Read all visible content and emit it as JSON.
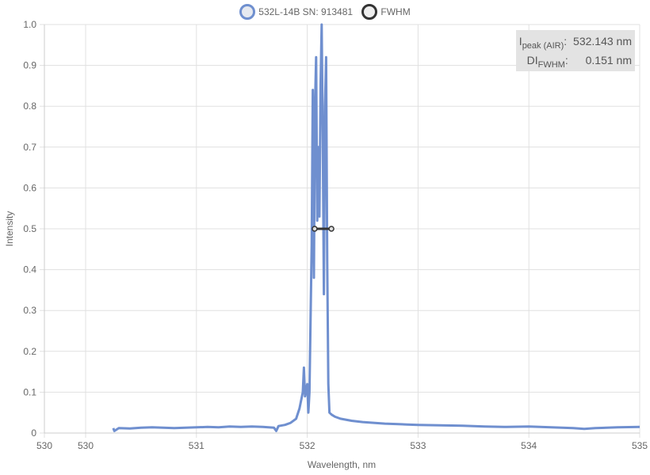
{
  "legend": {
    "series_label": "532L-14B SN: 913481",
    "fwhm_label": "FWHM"
  },
  "info": {
    "peak_main": "I",
    "peak_sub": "peak (AIR)",
    "peak_colon": ":",
    "peak_value": "532.143 nm",
    "fwhm_main": "DI",
    "fwhm_sub": "FWHM",
    "fwhm_colon": ":",
    "fwhm_value": "0.151 nm"
  },
  "colors": {
    "series": "#6f8fcf",
    "fwhm": "#333333",
    "grid": "#e0e0e0",
    "info_bg": "#e3e3e3"
  },
  "chart_data": {
    "type": "line",
    "xlabel": "Wavelength, nm",
    "ylabel": "Intensity",
    "xlim": [
      530,
      535
    ],
    "ylim": [
      0,
      1.0
    ],
    "x_ticks": [
      "530",
      "530",
      "531",
      "532",
      "533",
      "534",
      "535"
    ],
    "y_ticks": [
      "0",
      "0.1",
      "0.2",
      "0.3",
      "0.4",
      "0.5",
      "0.6",
      "0.7",
      "0.8",
      "0.9",
      "1.0"
    ],
    "grid": true,
    "legend_position": "top-center",
    "series": [
      {
        "name": "532L-14B SN: 913481",
        "x": [
          530.25,
          530.26,
          530.3,
          530.4,
          530.5,
          530.6,
          530.7,
          530.8,
          530.9,
          531.0,
          531.1,
          531.2,
          531.3,
          531.4,
          531.5,
          531.6,
          531.7,
          531.72,
          531.74,
          531.8,
          531.85,
          531.9,
          531.93,
          531.96,
          531.97,
          531.98,
          532.0,
          532.01,
          532.02,
          532.04,
          532.05,
          532.06,
          532.07,
          532.08,
          532.09,
          532.1,
          532.11,
          532.12,
          532.13,
          532.14,
          532.15,
          532.16,
          532.17,
          532.18,
          532.19,
          532.2,
          532.22,
          532.25,
          532.3,
          532.4,
          532.5,
          532.6,
          532.7,
          532.8,
          532.9,
          533.0,
          533.2,
          533.4,
          533.6,
          533.8,
          534.0,
          534.2,
          534.4,
          534.5,
          534.6,
          534.8,
          535.0
        ],
        "y": [
          0.012,
          0.005,
          0.012,
          0.011,
          0.013,
          0.014,
          0.013,
          0.012,
          0.013,
          0.014,
          0.015,
          0.014,
          0.016,
          0.015,
          0.016,
          0.015,
          0.013,
          0.005,
          0.017,
          0.02,
          0.025,
          0.035,
          0.06,
          0.1,
          0.16,
          0.09,
          0.12,
          0.05,
          0.1,
          0.46,
          0.84,
          0.38,
          0.8,
          0.92,
          0.52,
          0.7,
          0.53,
          0.85,
          1.0,
          0.72,
          0.34,
          0.8,
          0.92,
          0.42,
          0.12,
          0.05,
          0.045,
          0.04,
          0.035,
          0.03,
          0.027,
          0.025,
          0.023,
          0.022,
          0.021,
          0.02,
          0.019,
          0.018,
          0.016,
          0.015,
          0.016,
          0.014,
          0.012,
          0.01,
          0.012,
          0.014,
          0.015
        ]
      },
      {
        "name": "FWHM",
        "x": [
          532.067,
          532.143,
          532.218
        ],
        "y": [
          0.5,
          0.5,
          0.5
        ]
      }
    ]
  }
}
